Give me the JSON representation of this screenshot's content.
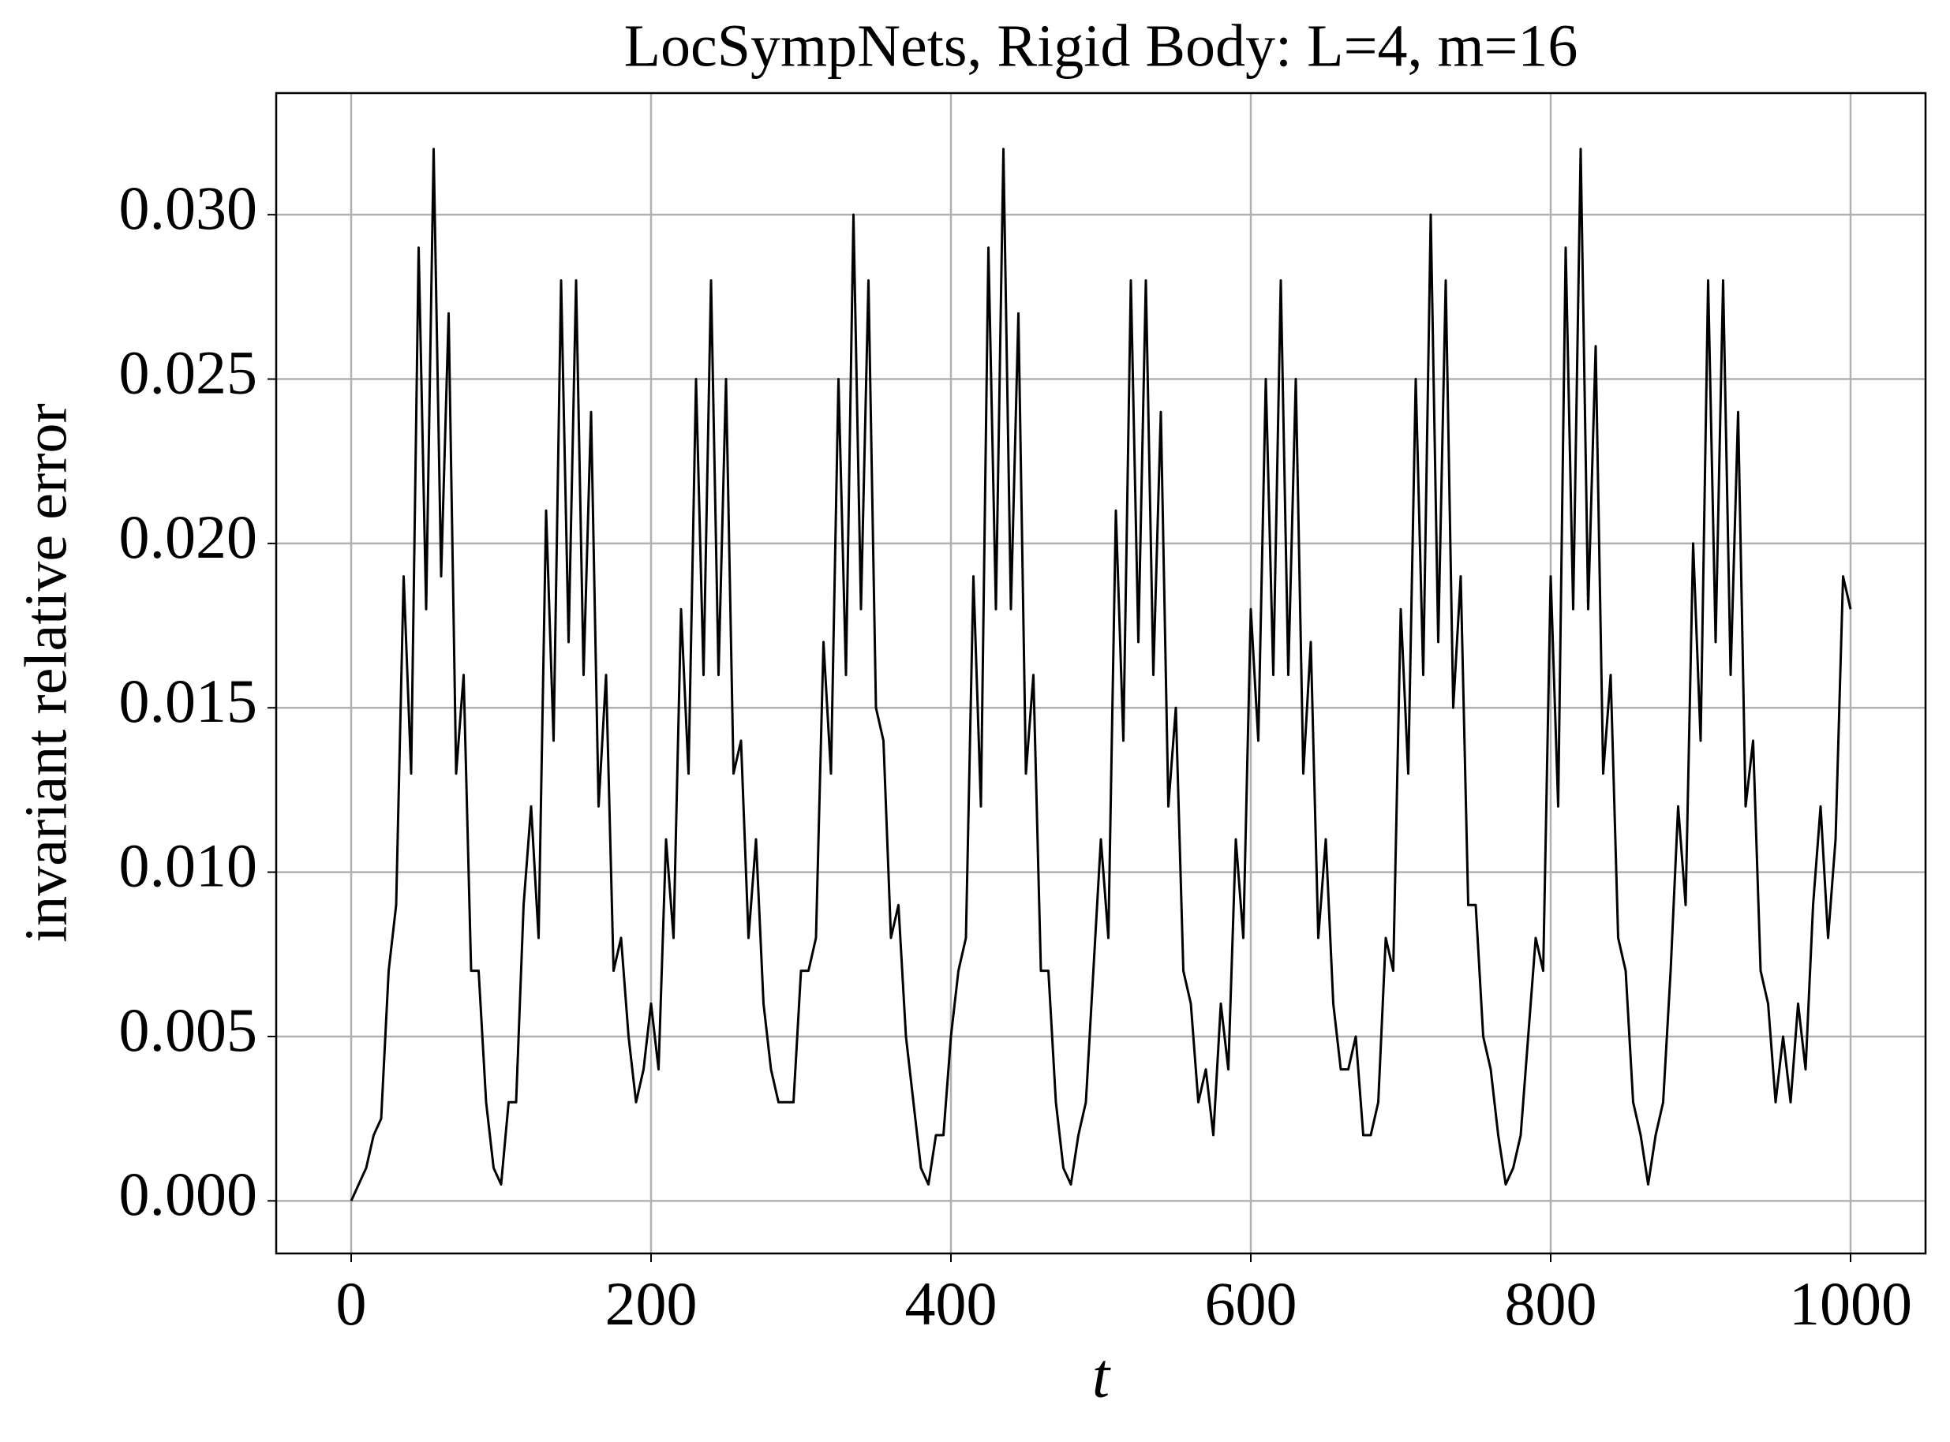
{
  "chart_data": {
    "type": "line",
    "title": "LocSympNets, Rigid Body: L=4, m=16",
    "x_label": "t",
    "y_label": "invariant relative error",
    "xlim": [
      -50,
      1050
    ],
    "ylim": [
      -0.0016,
      0.0337
    ],
    "xticks": [
      0,
      200,
      400,
      600,
      800,
      1000
    ],
    "yticks": [
      {
        "value": 0,
        "label": "0.000"
      },
      {
        "value": 0.005,
        "label": "0.005"
      },
      {
        "value": 0.01,
        "label": "0.010"
      },
      {
        "value": 0.015,
        "label": "0.015"
      },
      {
        "value": 0.02,
        "label": "0.020"
      },
      {
        "value": 0.025,
        "label": "0.025"
      },
      {
        "value": 0.03,
        "label": "0.030"
      }
    ],
    "grid": true,
    "series": [
      {
        "color": "#000000",
        "x": [
          0,
          5,
          10,
          15,
          20,
          25,
          30,
          35,
          40,
          45,
          50,
          55,
          60,
          65,
          70,
          75,
          80,
          85,
          90,
          95,
          100,
          105,
          110,
          115,
          120,
          125,
          130,
          135,
          140,
          145,
          150,
          155,
          160,
          165,
          170,
          175,
          180,
          185,
          190,
          195,
          200,
          205,
          210,
          215,
          220,
          225,
          230,
          235,
          240,
          245,
          250,
          255,
          260,
          265,
          270,
          275,
          280,
          285,
          290,
          295,
          300,
          305,
          310,
          315,
          320,
          325,
          330,
          335,
          340,
          345,
          350,
          355,
          360,
          365,
          370,
          375,
          380,
          385,
          390,
          395,
          400,
          405,
          410,
          415,
          420,
          425,
          430,
          435,
          440,
          445,
          450,
          455,
          460,
          465,
          470,
          475,
          480,
          485,
          490,
          495,
          500,
          505,
          510,
          515,
          520,
          525,
          530,
          535,
          540,
          545,
          550,
          555,
          560,
          565,
          570,
          575,
          580,
          585,
          590,
          595,
          600,
          605,
          610,
          615,
          620,
          625,
          630,
          635,
          640,
          645,
          650,
          655,
          660,
          665,
          670,
          675,
          680,
          685,
          690,
          695,
          700,
          705,
          710,
          715,
          720,
          725,
          730,
          735,
          740,
          745,
          750,
          755,
          760,
          765,
          770,
          775,
          780,
          785,
          790,
          795,
          800,
          805,
          810,
          815,
          820,
          825,
          830,
          835,
          840,
          845,
          850,
          855,
          860,
          865,
          870,
          875,
          880,
          885,
          890,
          895,
          900,
          905,
          910,
          915,
          920,
          925,
          930,
          935,
          940,
          945,
          950,
          955,
          960,
          965,
          970,
          975,
          980,
          985,
          990,
          995,
          1000
        ],
        "values": [
          0,
          0.0005,
          0.001,
          0.002,
          0.0025,
          0.007,
          0.009,
          0.019,
          0.013,
          0.029,
          0.018,
          0.032,
          0.019,
          0.027,
          0.013,
          0.016,
          0.007,
          0.007,
          0.003,
          0.001,
          0.0005,
          0.003,
          0.003,
          0.009,
          0.012,
          0.008,
          0.021,
          0.014,
          0.028,
          0.017,
          0.028,
          0.016,
          0.024,
          0.012,
          0.016,
          0.007,
          0.008,
          0.005,
          0.003,
          0.004,
          0.006,
          0.004,
          0.011,
          0.008,
          0.018,
          0.013,
          0.025,
          0.016,
          0.028,
          0.016,
          0.025,
          0.013,
          0.014,
          0.008,
          0.011,
          0.006,
          0.004,
          0.003,
          0.003,
          0.003,
          0.007,
          0.007,
          0.008,
          0.017,
          0.013,
          0.025,
          0.016,
          0.03,
          0.018,
          0.028,
          0.015,
          0.014,
          0.008,
          0.009,
          0.005,
          0.003,
          0.001,
          0.0005,
          0.002,
          0.002,
          0.005,
          0.007,
          0.008,
          0.019,
          0.012,
          0.029,
          0.018,
          0.032,
          0.018,
          0.027,
          0.013,
          0.016,
          0.007,
          0.007,
          0.003,
          0.001,
          0.0005,
          0.002,
          0.003,
          0.007,
          0.011,
          0.008,
          0.021,
          0.014,
          0.028,
          0.017,
          0.028,
          0.016,
          0.024,
          0.012,
          0.015,
          0.007,
          0.006,
          0.003,
          0.004,
          0.002,
          0.006,
          0.004,
          0.011,
          0.008,
          0.018,
          0.014,
          0.025,
          0.016,
          0.028,
          0.016,
          0.025,
          0.013,
          0.017,
          0.008,
          0.011,
          0.006,
          0.004,
          0.004,
          0.005,
          0.002,
          0.002,
          0.003,
          0.008,
          0.007,
          0.018,
          0.013,
          0.025,
          0.016,
          0.03,
          0.017,
          0.028,
          0.015,
          0.019,
          0.009,
          0.009,
          0.005,
          0.004,
          0.002,
          0.0005,
          0.001,
          0.002,
          0.005,
          0.008,
          0.007,
          0.019,
          0.012,
          0.029,
          0.018,
          0.032,
          0.018,
          0.026,
          0.013,
          0.016,
          0.008,
          0.007,
          0.003,
          0.002,
          0.0005,
          0.002,
          0.003,
          0.007,
          0.012,
          0.009,
          0.02,
          0.014,
          0.028,
          0.017,
          0.028,
          0.016,
          0.024,
          0.012,
          0.014,
          0.007,
          0.006,
          0.003,
          0.005,
          0.003,
          0.006,
          0.004,
          0.009,
          0.012,
          0.008,
          0.011,
          0.019,
          0.018
        ]
      }
    ]
  }
}
